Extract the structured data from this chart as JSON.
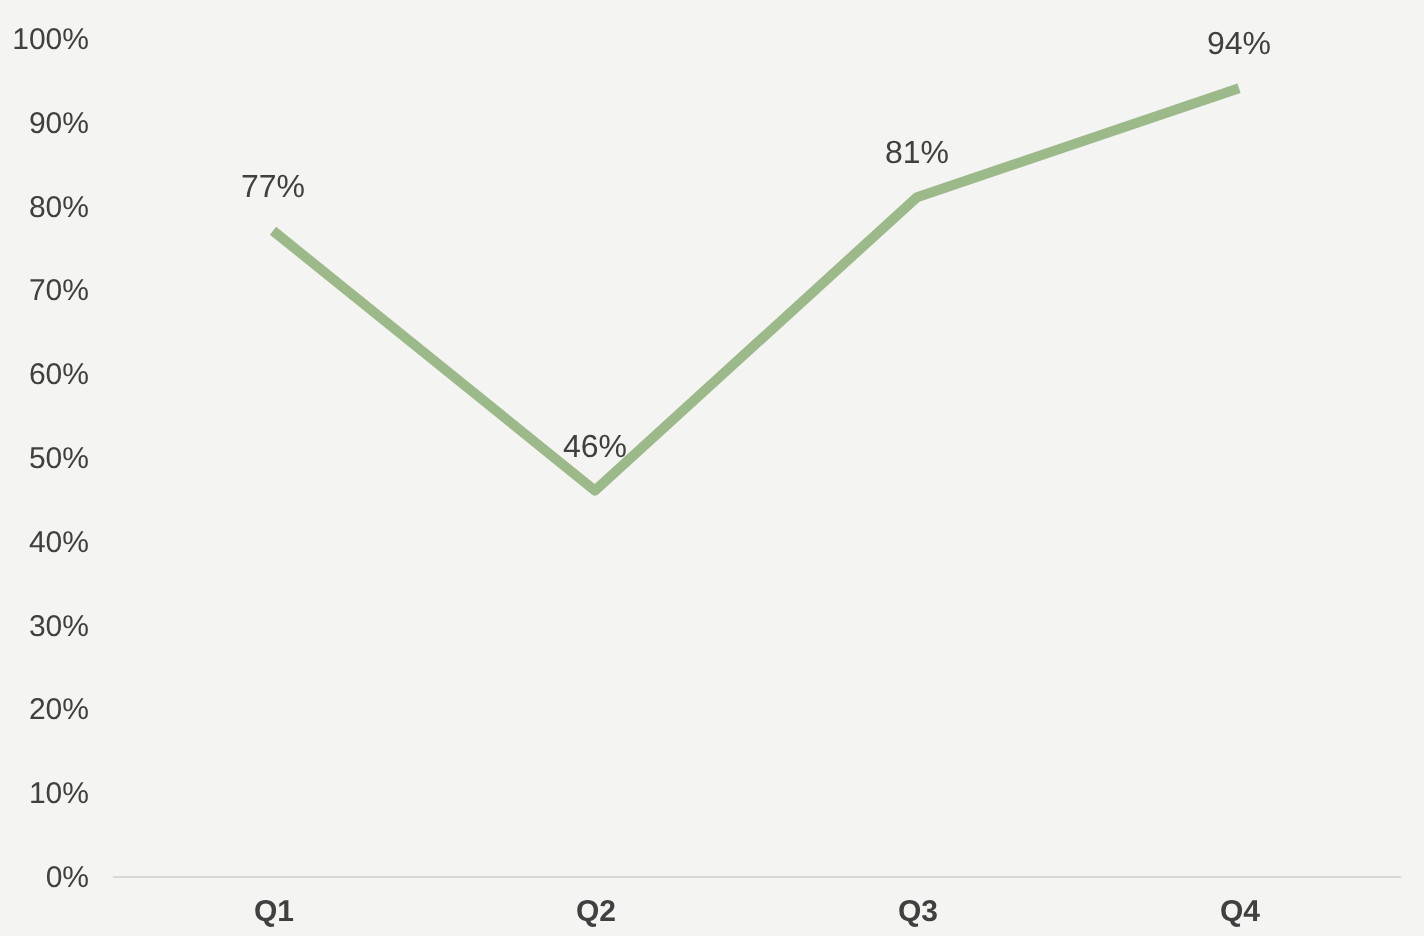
{
  "chart_data": {
    "type": "line",
    "categories": [
      "Q1",
      "Q2",
      "Q3",
      "Q4"
    ],
    "series": [
      {
        "color": "#9cb98a",
        "values": [
          77,
          46,
          81,
          94
        ],
        "value_labels": [
          "77%",
          "46%",
          "81%",
          "94%"
        ]
      }
    ],
    "ylim": [
      0,
      100
    ],
    "yticks": [
      {
        "value": 0,
        "label": "0%"
      },
      {
        "value": 10,
        "label": "10%"
      },
      {
        "value": 20,
        "label": "20%"
      },
      {
        "value": 30,
        "label": "30%"
      },
      {
        "value": 40,
        "label": "40%"
      },
      {
        "value": 50,
        "label": "50%"
      },
      {
        "value": 60,
        "label": "60%"
      },
      {
        "value": 70,
        "label": "70%"
      },
      {
        "value": 80,
        "label": "80%"
      },
      {
        "value": 90,
        "label": "90%"
      },
      {
        "value": 100,
        "label": "100%"
      }
    ],
    "grid": false,
    "marker": "none",
    "line_style": "solid"
  }
}
